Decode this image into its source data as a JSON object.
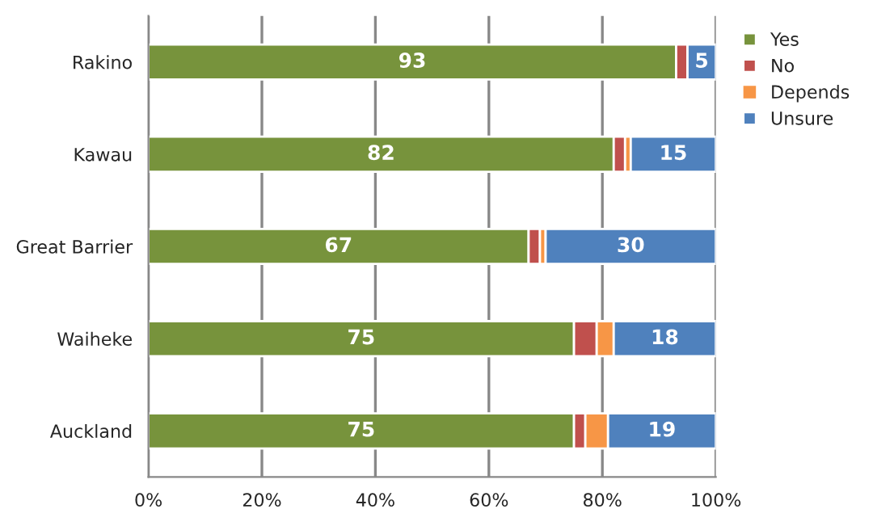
{
  "chart_data": {
    "type": "bar",
    "orientation": "horizontal",
    "stacked": true,
    "categories": [
      "Rakino",
      "Kawau",
      "Great Barrier",
      "Waiheke",
      "Auckland"
    ],
    "series": [
      {
        "name": "Yes",
        "color": "#77933c",
        "values": [
          93,
          82,
          67,
          75,
          75
        ],
        "value_labels": [
          "93",
          "82",
          "67",
          "75",
          "75"
        ]
      },
      {
        "name": "No",
        "color": "#c0504d",
        "values": [
          2,
          2,
          2,
          4,
          2
        ]
      },
      {
        "name": "Depends",
        "color": "#f79646",
        "values": [
          null,
          1,
          1,
          3,
          4
        ]
      },
      {
        "name": "Unsure",
        "color": "#4f81bd",
        "values": [
          5,
          15,
          30,
          18,
          19
        ],
        "value_labels": [
          "5",
          "15",
          "30",
          "18",
          "19"
        ]
      }
    ],
    "xlim": [
      0,
      100
    ],
    "xticks": [
      {
        "value": 0,
        "label": "0%"
      },
      {
        "value": 20,
        "label": "20%"
      },
      {
        "value": 40,
        "label": "40%"
      },
      {
        "value": 60,
        "label": "60%"
      },
      {
        "value": 80,
        "label": "80%"
      },
      {
        "value": 100,
        "label": "100%"
      }
    ],
    "grid": "x",
    "legend": "right"
  }
}
